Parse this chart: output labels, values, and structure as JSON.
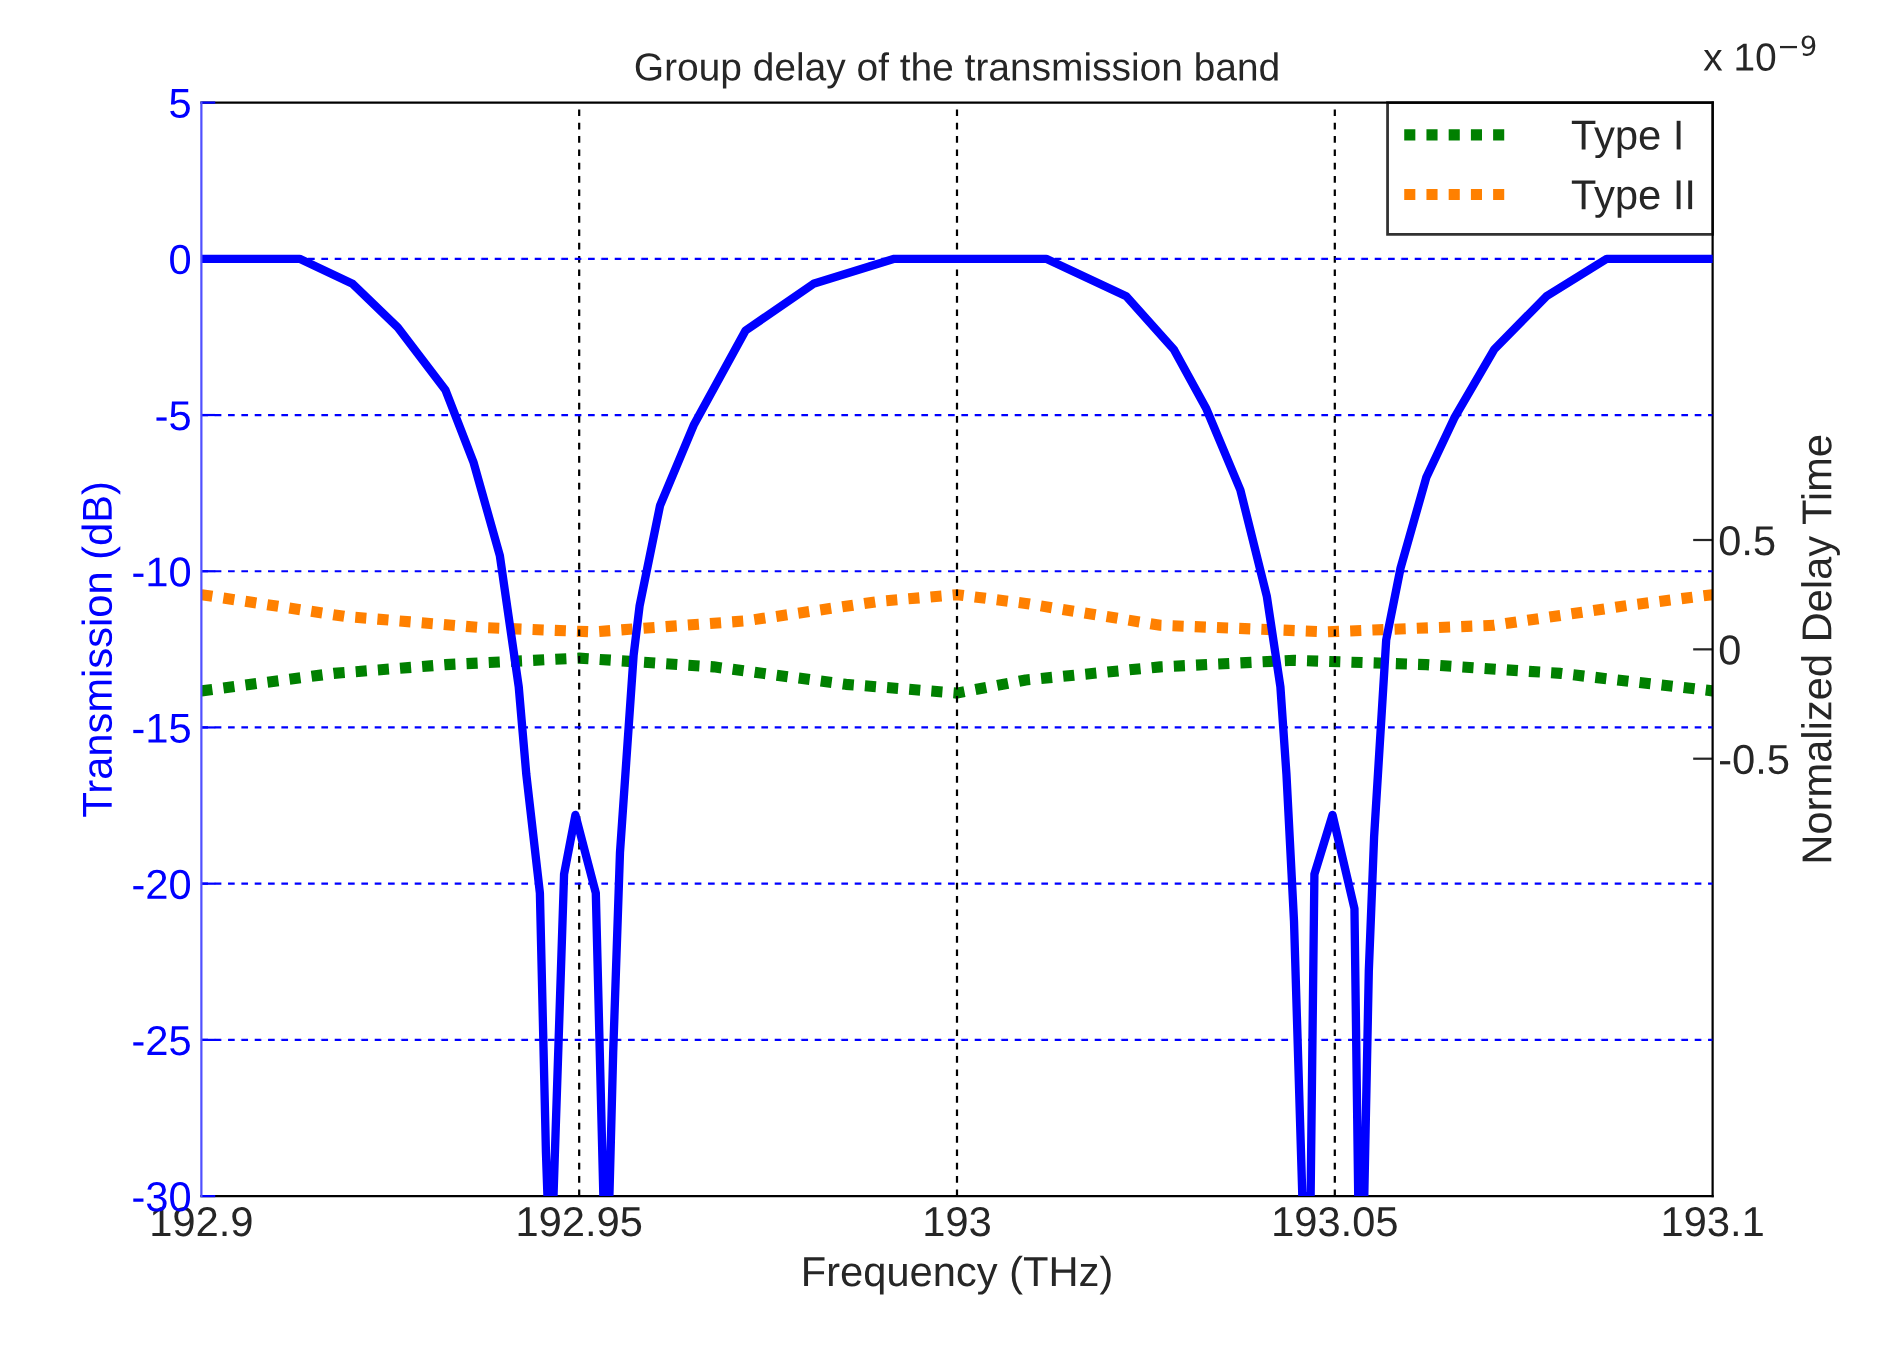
{
  "chart_data": {
    "type": "line",
    "title": "Group delay of the transmission band",
    "xlabel": "Frequency (THz)",
    "ylabel": "Transmission (dB)",
    "y2label": "Normalized Delay Time",
    "annotations": [
      "x 10$^{−9}$"
    ],
    "xlim": [
      192.9,
      193.1
    ],
    "xticks": [
      192.9,
      192.95,
      193,
      193.05,
      193.1
    ],
    "ylim": [
      -30,
      5
    ],
    "yticks": [
      -30,
      -25,
      -20,
      -15,
      -10,
      -5,
      0,
      5
    ],
    "y2lim": [
      -2.5,
      2.5
    ],
    "y2ticks": [
      -0.5,
      0,
      0.5
    ],
    "grid": true,
    "legend": "top right",
    "series": [
      {
        "color": "#0000ff",
        "line_style": "solid",
        "x": [
          192.9,
          192.907,
          192.913,
          192.92,
          192.926,
          192.9323,
          192.936,
          192.9395,
          192.942,
          192.943,
          192.9448,
          192.9456,
          192.9458,
          192.9466,
          192.948,
          192.9495,
          192.9522,
          192.9532,
          192.954,
          192.9545,
          192.9554,
          192.9572,
          192.958,
          192.9607,
          192.9652,
          192.972,
          192.981,
          192.9917,
          193.0118,
          193.0224,
          193.0287,
          193.033,
          193.0375,
          193.041,
          193.0428,
          193.0436,
          193.0446,
          193.0457,
          193.0468,
          193.0473,
          193.0497,
          193.0526,
          193.0531,
          193.0539,
          193.0545,
          193.0552,
          193.0568,
          193.0587,
          193.0621,
          193.0658,
          193.0711,
          193.078,
          193.086,
          193.1
        ],
        "values": [
          0,
          0,
          0,
          -0.8,
          -2.2,
          -4.2,
          -6.5,
          -9.5,
          -13.7,
          -16.5,
          -20.3,
          -28.6,
          -30,
          -30,
          -19.7,
          -17.8,
          -20.3,
          -30,
          -30,
          -25.4,
          -19,
          -12.7,
          -11.1,
          -7.9,
          -5.3,
          -2.3,
          -0.8,
          0,
          0,
          -1.2,
          -2.9,
          -4.8,
          -7.4,
          -10.8,
          -13.7,
          -16.5,
          -21.2,
          -30,
          -30,
          -19.7,
          -17.8,
          -20.8,
          -30,
          -30,
          -22.8,
          -18.5,
          -12.2,
          -9.9,
          -7,
          -5.1,
          -2.9,
          -1.2,
          0,
          0
        ]
      },
      {
        "name": "Type I",
        "color": "#008000",
        "axis": "y2",
        "line_style": "dotted",
        "x": [
          192.9,
          192.9175,
          192.9323,
          192.95,
          192.9678,
          192.9853,
          193.0,
          193.0091,
          193.0269,
          193.0446,
          193.0621,
          193.0799,
          193.1
        ],
        "values": [
          -0.19,
          -0.11,
          -0.07,
          -0.04,
          -0.08,
          -0.16,
          -0.2,
          -0.14,
          -0.08,
          -0.05,
          -0.07,
          -0.11,
          -0.19
        ]
      },
      {
        "name": "Type II",
        "color": "#ff8000",
        "axis": "y2",
        "line_style": "dotted",
        "x": [
          192.9,
          192.9191,
          192.9368,
          192.9519,
          192.972,
          192.9898,
          193.0,
          193.0091,
          193.0269,
          193.0489,
          193.0711,
          193.0886,
          193.1
        ],
        "values": [
          0.25,
          0.15,
          0.1,
          0.08,
          0.13,
          0.22,
          0.25,
          0.21,
          0.11,
          0.08,
          0.11,
          0.2,
          0.25
        ]
      }
    ]
  }
}
